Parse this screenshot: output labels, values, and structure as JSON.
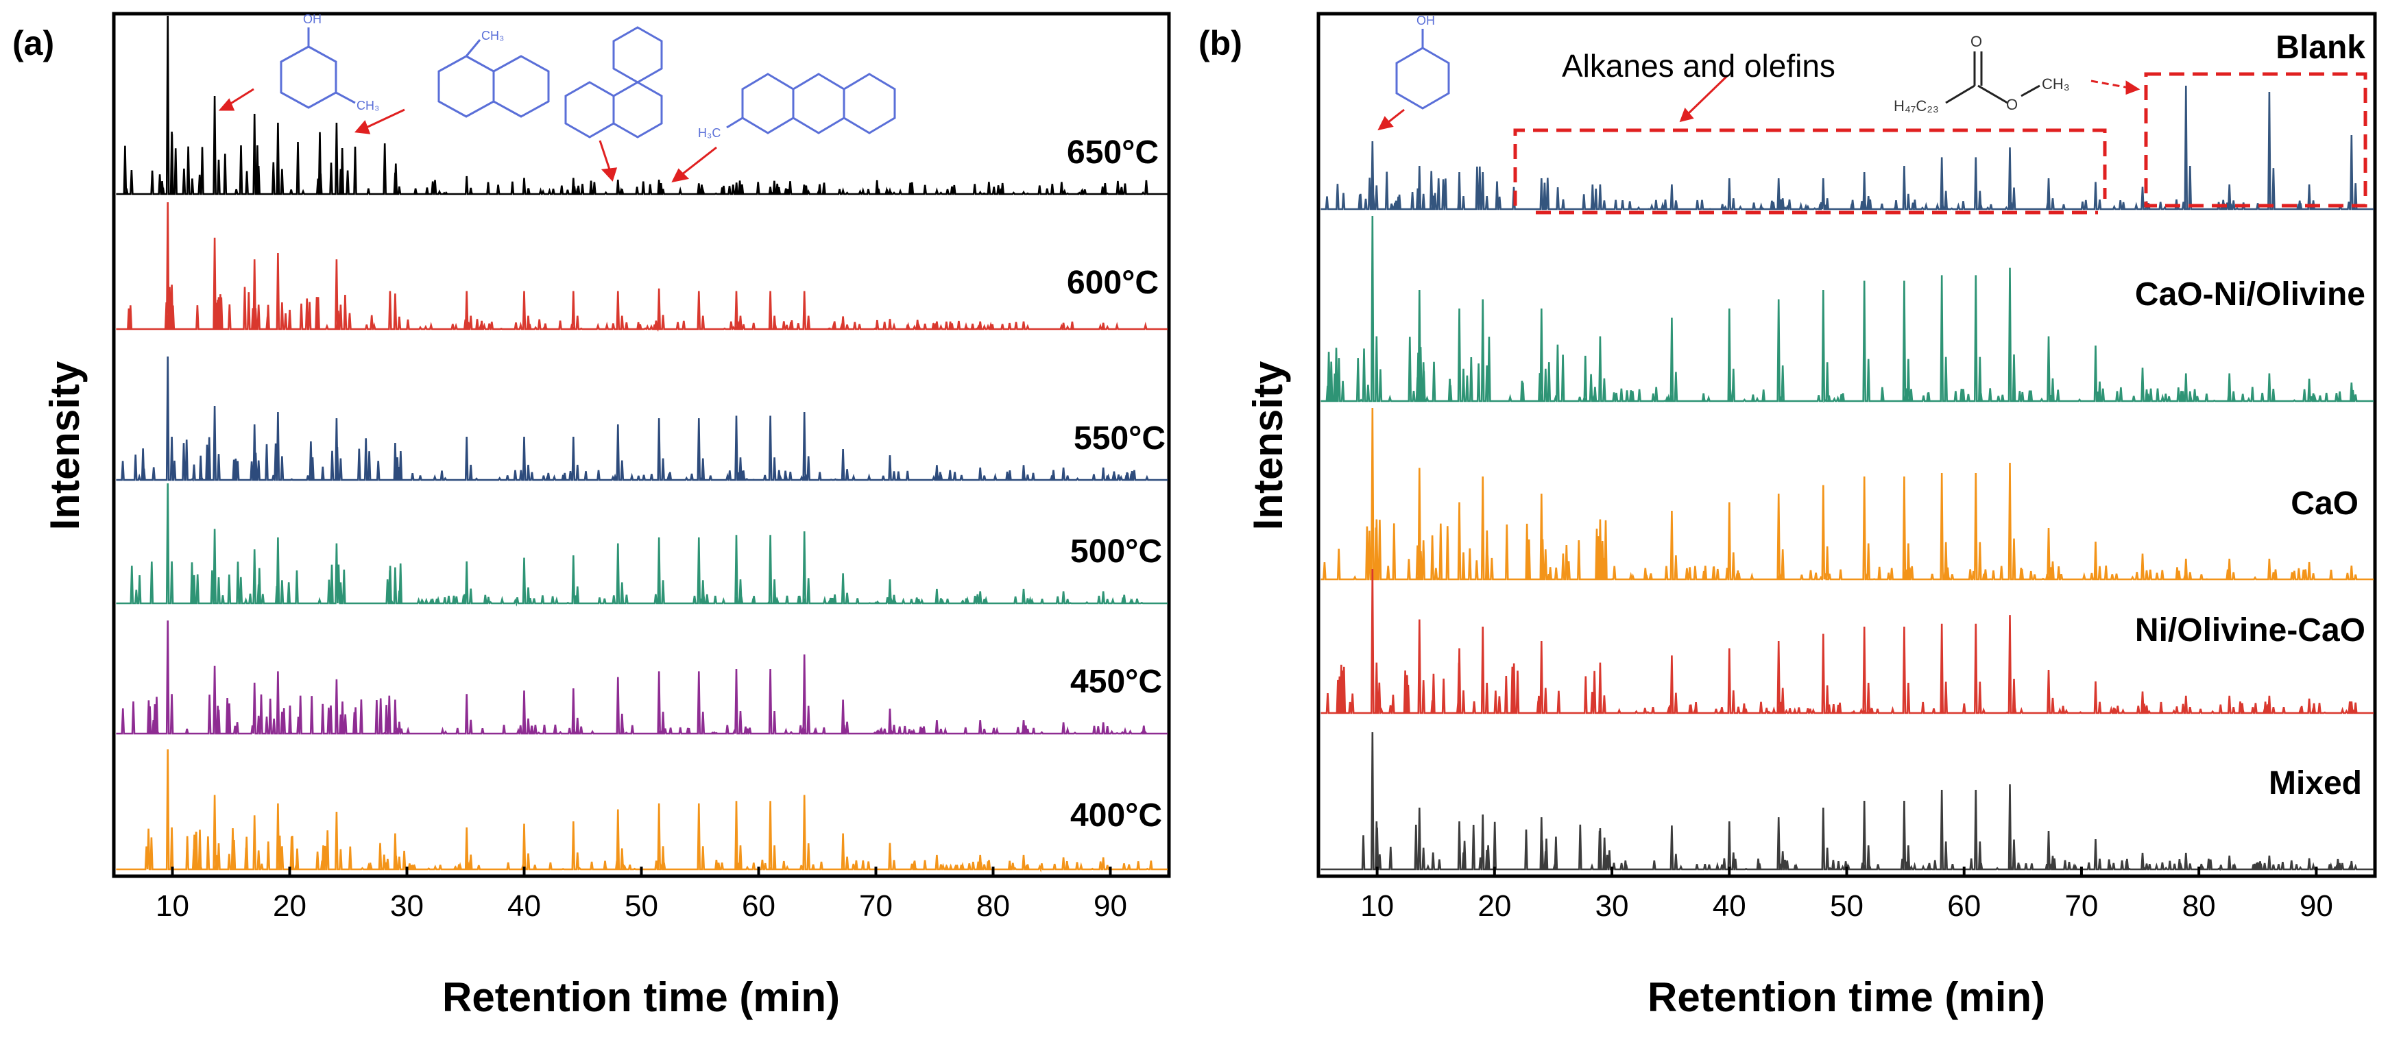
{
  "chart_data": [
    {
      "panel": "(a)",
      "type": "line",
      "xlabel": "Retention time (min)",
      "ylabel": "Intensity",
      "xlim": [
        5,
        95
      ],
      "xticks": [
        10,
        20,
        30,
        40,
        50,
        60,
        70,
        80,
        90
      ],
      "legend_placement": "series labels placed at right end of each stacked trace",
      "peak_positions_min": [
        9.6,
        13.6,
        17.0,
        19.0,
        24.0,
        29.0,
        35.1,
        40.0,
        44.2,
        48.0,
        51.5,
        54.9,
        58.1,
        61.0,
        63.9,
        67.2,
        71.2,
        75.2,
        78.9,
        82.6,
        86.0,
        89.4
      ],
      "series": [
        {
          "name": "650°C",
          "color": "#000000",
          "relative_peak_heights": [
            1.0,
            0.55,
            0.45,
            0.4,
            0.4,
            0.12,
            0.1,
            0.09,
            0.09,
            0.08,
            0.08,
            0.06,
            0.05,
            0.04,
            0.04,
            0.02,
            0.02,
            0.02,
            0.01,
            0.01,
            0.01,
            0.01
          ]
        },
        {
          "name": "600°C",
          "color": "#d9382e",
          "relative_peak_heights": [
            1.0,
            0.72,
            0.55,
            0.6,
            0.55,
            0.28,
            0.3,
            0.3,
            0.3,
            0.3,
            0.32,
            0.3,
            0.3,
            0.3,
            0.3,
            0.1,
            0.08,
            0.06,
            0.06,
            0.06,
            0.05,
            0.05
          ]
        },
        {
          "name": "550°C",
          "color": "#2d4b7c",
          "relative_peak_heights": [
            1.0,
            0.6,
            0.45,
            0.55,
            0.5,
            0.3,
            0.35,
            0.35,
            0.35,
            0.45,
            0.5,
            0.5,
            0.52,
            0.52,
            0.55,
            0.25,
            0.2,
            0.12,
            0.1,
            0.12,
            0.1,
            0.1
          ]
        },
        {
          "name": "500°C",
          "color": "#2e9475",
          "relative_peak_heights": [
            1.0,
            0.62,
            0.45,
            0.55,
            0.5,
            0.3,
            0.35,
            0.38,
            0.4,
            0.5,
            0.55,
            0.55,
            0.57,
            0.57,
            0.6,
            0.25,
            0.2,
            0.12,
            0.1,
            0.12,
            0.1,
            0.1
          ]
        },
        {
          "name": "450°C",
          "color": "#8e2c92",
          "relative_peak_heights": [
            1.0,
            0.6,
            0.45,
            0.55,
            0.48,
            0.3,
            0.35,
            0.38,
            0.4,
            0.5,
            0.55,
            0.55,
            0.57,
            0.57,
            0.7,
            0.3,
            0.22,
            0.12,
            0.12,
            0.12,
            0.1,
            0.1
          ]
        },
        {
          "name": "400°C",
          "color": "#f39419",
          "relative_peak_heights": [
            1.0,
            0.62,
            0.45,
            0.55,
            0.48,
            0.3,
            0.35,
            0.38,
            0.4,
            0.5,
            0.55,
            0.55,
            0.57,
            0.57,
            0.62,
            0.3,
            0.22,
            0.12,
            0.12,
            0.12,
            0.1,
            0.1
          ]
        }
      ],
      "structure_annotations": [
        "phenol derivative (OH, CH3)",
        "methylnaphthalene",
        "phenanthrene",
        "methylanthracene (H3C)"
      ]
    },
    {
      "panel": "(b)",
      "type": "line",
      "xlabel": "Retention time (min)",
      "ylabel": "Intensity",
      "xlim": [
        5,
        95
      ],
      "xticks": [
        10,
        20,
        30,
        40,
        50,
        60,
        70,
        80,
        90
      ],
      "legend_placement": "series labels placed at right end of each stacked trace",
      "peak_positions_min": [
        9.6,
        13.6,
        17.0,
        19.0,
        24.0,
        29.0,
        35.1,
        40.0,
        44.2,
        48.0,
        51.5,
        54.9,
        58.1,
        61.0,
        63.9,
        67.2,
        71.2,
        75.2,
        78.9,
        82.6,
        86.0,
        89.4,
        93.0
      ],
      "series": [
        {
          "name": "Blank",
          "color": "#34557e",
          "relative_peak_heights": [
            0.55,
            0.35,
            0.3,
            0.3,
            0.25,
            0.2,
            0.2,
            0.25,
            0.25,
            0.25,
            0.3,
            0.35,
            0.42,
            0.42,
            0.5,
            0.25,
            0.22,
            0.18,
            1.0,
            0.2,
            0.95,
            0.2,
            0.6
          ]
        },
        {
          "name": "CaO-Ni/Olivine",
          "color": "#2e9475",
          "relative_peak_heights": [
            1.0,
            0.6,
            0.5,
            0.55,
            0.5,
            0.35,
            0.45,
            0.5,
            0.55,
            0.6,
            0.65,
            0.65,
            0.68,
            0.68,
            0.72,
            0.35,
            0.3,
            0.18,
            0.15,
            0.15,
            0.15,
            0.12,
            0.1
          ]
        },
        {
          "name": "CaO",
          "color": "#f39419",
          "relative_peak_heights": [
            1.0,
            0.65,
            0.45,
            0.6,
            0.5,
            0.35,
            0.4,
            0.45,
            0.5,
            0.55,
            0.6,
            0.6,
            0.62,
            0.62,
            0.68,
            0.3,
            0.22,
            0.15,
            0.12,
            0.12,
            0.12,
            0.1,
            0.08
          ]
        },
        {
          "name": "Ni/Olivine-CaO",
          "color": "#d9382e",
          "relative_peak_heights": [
            1.0,
            0.65,
            0.45,
            0.6,
            0.5,
            0.35,
            0.4,
            0.45,
            0.5,
            0.55,
            0.6,
            0.6,
            0.62,
            0.62,
            0.68,
            0.3,
            0.22,
            0.15,
            0.12,
            0.12,
            0.12,
            0.1,
            0.08
          ]
        },
        {
          "name": "Mixed",
          "color": "#3c3c3c",
          "relative_peak_heights": [
            1.0,
            0.45,
            0.35,
            0.4,
            0.38,
            0.3,
            0.32,
            0.35,
            0.38,
            0.45,
            0.5,
            0.5,
            0.58,
            0.58,
            0.62,
            0.28,
            0.22,
            0.12,
            0.12,
            0.1,
            0.1,
            0.08,
            0.06
          ]
        }
      ],
      "annotations": [
        "Alkanes and olefins"
      ],
      "structure_annotations": [
        "phenol (OH)",
        "methyl ester H47C23 / CH3"
      ]
    }
  ]
}
